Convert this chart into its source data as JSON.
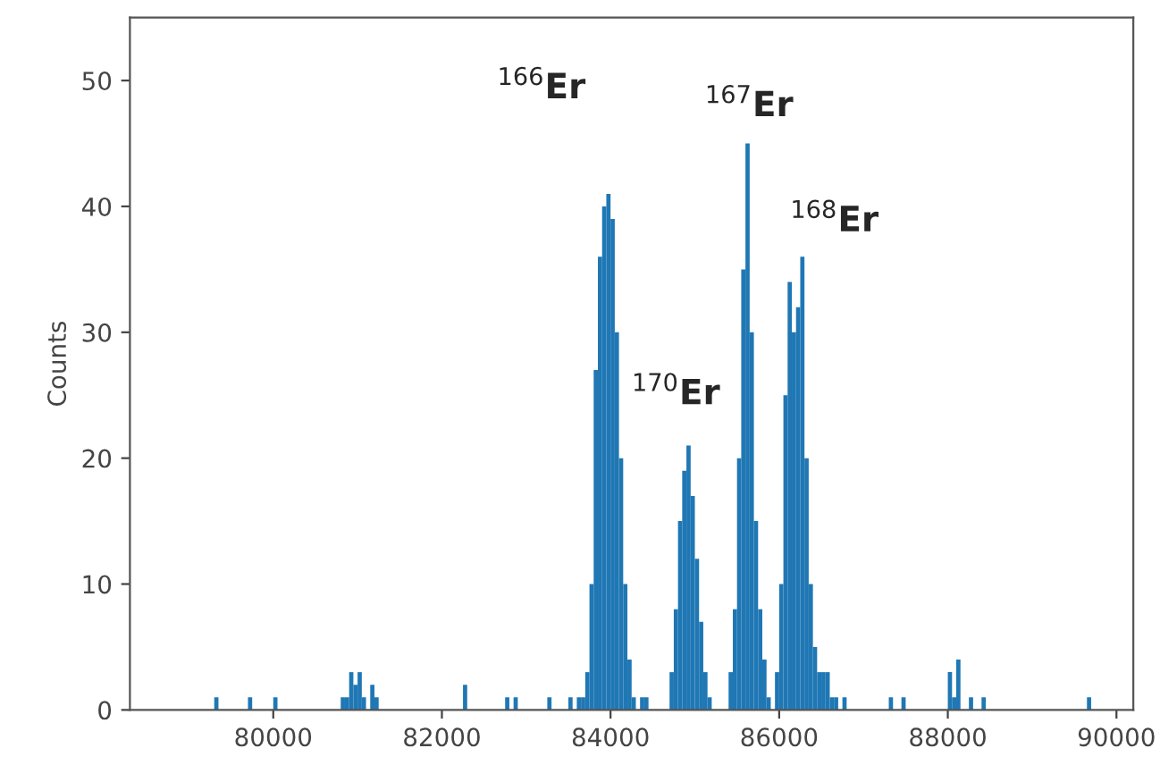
{
  "chart_data": {
    "type": "histogram",
    "ylabel": "Counts",
    "color": "#1f77b4",
    "bins": [
      79300,
      79350,
      79400,
      79450,
      79500,
      79550,
      79600,
      79650,
      79700,
      79750,
      79800,
      79850,
      79900,
      79950,
      80000,
      80050,
      80100,
      80150,
      80200,
      80250,
      80300,
      80350,
      80400,
      80450,
      80500,
      80550,
      80600,
      80650,
      80700,
      80750,
      80800,
      80850,
      80900,
      80950,
      81000,
      81050,
      81100,
      81150,
      81200,
      81250,
      81300,
      81350,
      81400,
      81450,
      81500,
      81550,
      81600,
      81650,
      81700,
      81750,
      81800,
      81850,
      81900,
      81950,
      82000,
      82050,
      82100,
      82150,
      82200,
      82250,
      82300,
      82350,
      82400,
      82450,
      82500,
      82550,
      82600,
      82650,
      82700,
      82750,
      82800,
      82850,
      82900,
      82950,
      83000,
      83050,
      83100,
      83150,
      83200,
      83250,
      83300,
      83350,
      83400,
      83450,
      83500,
      83550,
      83600,
      83650,
      83700,
      83750,
      83800,
      83850,
      83900,
      83950,
      84000,
      84050,
      84100,
      84150,
      84200,
      84250,
      84300,
      84350,
      84400,
      84450,
      84500,
      84550,
      84600,
      84650,
      84700,
      84750,
      84800,
      84850,
      84900,
      84950,
      85000,
      85050,
      85100,
      85150,
      85200,
      85250,
      85300,
      85350,
      85400,
      85450,
      85500,
      85550,
      85600,
      85650,
      85700,
      85750,
      85800,
      85850,
      85900,
      85950,
      86000,
      86050,
      86100,
      86150,
      86200,
      86250,
      86300,
      86350,
      86400,
      86450,
      86500,
      86550,
      86600,
      86650,
      86700,
      86750,
      86800,
      86850,
      86900,
      86950,
      87000,
      87050,
      87100,
      87150,
      87200,
      87250,
      87300,
      87350,
      87400,
      87450,
      87500,
      87550,
      87600,
      87650,
      87700,
      87750,
      87800,
      87850,
      87900,
      87950,
      88000,
      88050,
      88100,
      88150,
      88200,
      88250,
      88300,
      88350,
      88400,
      88450,
      88500,
      88550,
      88600,
      88650,
      88700,
      88750,
      88800,
      88850,
      88900,
      88950,
      89000,
      89050,
      89100,
      89150,
      89200,
      89250,
      89300,
      89350,
      89400,
      89450,
      89500,
      89550,
      89600,
      89650,
      89700
    ],
    "values": [
      1,
      0,
      0,
      0,
      0,
      0,
      0,
      0,
      1,
      0,
      0,
      0,
      0,
      0,
      1,
      0,
      0,
      0,
      0,
      0,
      0,
      0,
      0,
      0,
      0,
      0,
      0,
      0,
      0,
      0,
      1,
      1,
      3,
      2,
      3,
      1,
      0,
      2,
      1,
      0,
      0,
      0,
      0,
      0,
      0,
      0,
      0,
      0,
      0,
      0,
      0,
      0,
      0,
      0,
      0,
      0,
      0,
      0,
      0,
      2,
      0,
      0,
      0,
      0,
      0,
      0,
      0,
      0,
      0,
      1,
      0,
      1,
      0,
      0,
      0,
      0,
      0,
      0,
      0,
      1,
      0,
      0,
      0,
      0,
      1,
      0,
      1,
      1,
      3,
      10,
      27,
      36,
      40,
      41,
      39,
      30,
      20,
      10,
      4,
      1,
      0,
      1,
      1,
      0,
      0,
      0,
      0,
      0,
      3,
      8,
      15,
      19,
      21,
      17,
      12,
      7,
      3,
      1,
      0,
      0,
      0,
      0,
      3,
      8,
      20,
      35,
      45,
      30,
      15,
      8,
      4,
      1,
      0,
      3,
      10,
      25,
      34,
      30,
      32,
      36,
      20,
      10,
      5,
      3,
      3,
      3,
      1,
      1,
      0,
      1,
      0,
      0,
      0,
      0,
      0,
      0,
      0,
      0,
      0,
      0,
      1,
      0,
      0,
      1,
      0,
      0,
      0,
      0,
      0,
      0,
      0,
      0,
      0,
      0,
      3,
      1,
      4,
      0,
      0,
      1,
      0,
      0,
      1,
      0,
      0,
      0,
      0,
      0,
      0,
      0,
      0,
      0,
      0,
      0,
      0,
      0,
      0,
      0,
      0,
      0,
      0,
      0,
      0,
      0,
      0,
      0,
      0,
      1
    ],
    "xlim": [
      78300,
      90200
    ],
    "ylim": [
      0,
      55
    ],
    "xticks": [
      80000,
      82000,
      84000,
      86000,
      88000,
      90000
    ],
    "yticks": [
      0,
      10,
      20,
      30,
      40,
      50
    ],
    "grid": false,
    "annotations": [
      "$^{166}$Er",
      "$^{167}$Er",
      "$^{168}$Er",
      "$^{170}$Er"
    ]
  }
}
